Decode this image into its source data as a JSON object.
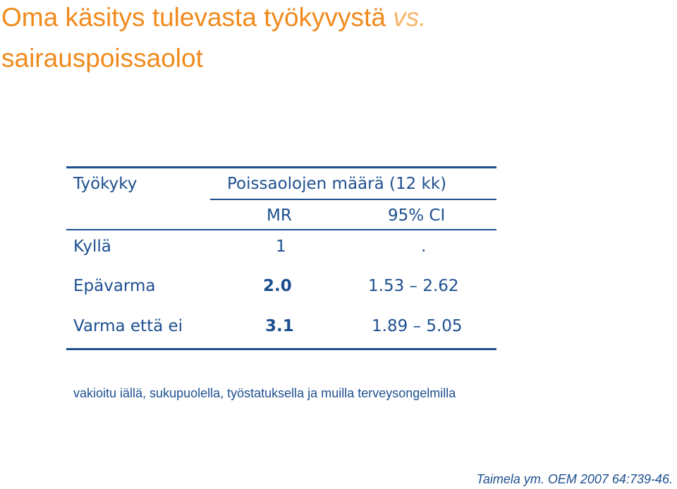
{
  "slide": {
    "title_main": "Oma käsitys tulevasta työkyvystä",
    "title_vs": "vs.",
    "title_line2": "sairauspoissaolot"
  },
  "table": {
    "header": {
      "col1": "Työkyky",
      "group": "Poissaolojen määrä (12 kk)",
      "mr": "MR",
      "ci": "95% CI"
    },
    "rows": [
      {
        "label": "Kyllä",
        "mr": "1",
        "ci": "."
      },
      {
        "label": "Epävarma",
        "mr": "2.0",
        "ci": "1.53 – 2.62"
      },
      {
        "label": "Varma että ei",
        "mr": "3.1",
        "ci": "1.89 – 5.05"
      }
    ]
  },
  "footnote": "vakioitu iällä, sukupuolella, työstatuksella ja muilla terveysongelmilla",
  "citation": "Taimela ym. OEM 2007 64:739-46.",
  "colors": {
    "title": "#f08a1c",
    "title_vs": "#f6b56b",
    "table_text": "#1d4f8f"
  }
}
